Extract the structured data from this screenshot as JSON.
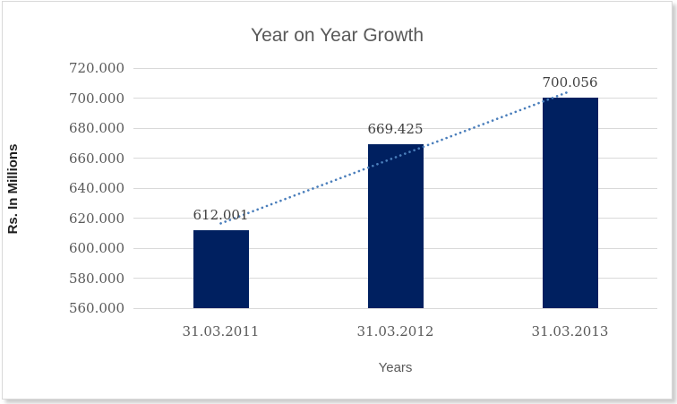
{
  "chart_data": {
    "type": "bar",
    "title": "Year on Year Growth",
    "xlabel": "Years",
    "ylabel": "Rs. In Millions",
    "categories": [
      "31.03.2011",
      "31.03.2012",
      "31.03.2013"
    ],
    "values": [
      612.001,
      669.425,
      700.056
    ],
    "data_labels": [
      "612.001",
      "669.425",
      "700.056"
    ],
    "ylim": [
      560,
      720
    ],
    "ytick_step": 20,
    "ytick_labels": [
      "560.000",
      "580.000",
      "600.000",
      "620.000",
      "640.000",
      "660.000",
      "680.000",
      "700.000",
      "720.000"
    ],
    "grid": true,
    "legend": "none",
    "trendline": {
      "type": "linear",
      "style": "dotted"
    },
    "colors": {
      "bar": "#002060",
      "gridline": "#d9d9d9",
      "trend": "#4a7ebb",
      "title_text": "#595959",
      "tick_text": "#595959",
      "data_label_text": "#404040"
    }
  }
}
